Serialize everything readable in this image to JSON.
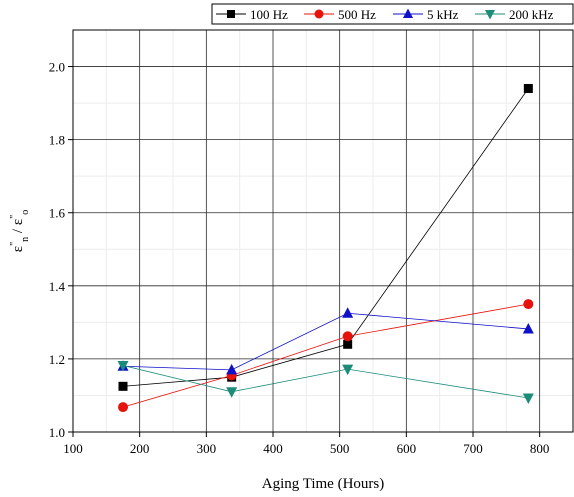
{
  "chart_data": {
    "type": "line",
    "title": "",
    "xlabel": "Aging Time (Hours)",
    "ylabel_parts": {
      "main": "ε",
      "sub1": "n",
      "sep": " / ",
      "main2": "ε",
      "sub2": "o",
      "sup": "\""
    },
    "xlim": [
      100,
      850
    ],
    "ylim": [
      1.0,
      2.1
    ],
    "xticks": [
      100,
      200,
      300,
      400,
      500,
      600,
      700,
      800
    ],
    "xtick_labels": [
      "100",
      "200",
      "300",
      "400",
      "500",
      "600",
      "700",
      "800"
    ],
    "yticks": [
      1.0,
      1.2,
      1.4,
      1.6,
      1.8,
      2.0
    ],
    "ytick_labels": [
      "1.0",
      "1.2",
      "1.4",
      "1.6",
      "1.8",
      "2.0"
    ],
    "grid": true,
    "legend_position": "top-right",
    "x": [
      175,
      338,
      512,
      783
    ],
    "series": [
      {
        "name": "100 Hz",
        "marker": "square",
        "color": "#000000",
        "values": [
          1.125,
          1.15,
          1.24,
          1.94
        ]
      },
      {
        "name": "500 Hz",
        "marker": "circle",
        "color": "#e8120c",
        "values": [
          1.068,
          1.155,
          1.262,
          1.35
        ]
      },
      {
        "name": "5 kHz",
        "marker": "triangle-up",
        "color": "#1010c8",
        "values": [
          1.18,
          1.17,
          1.325,
          1.282
        ]
      },
      {
        "name": "200 kHz",
        "marker": "triangle-down",
        "color": "#1b8c7a",
        "values": [
          1.182,
          1.11,
          1.172,
          1.093
        ]
      }
    ]
  }
}
